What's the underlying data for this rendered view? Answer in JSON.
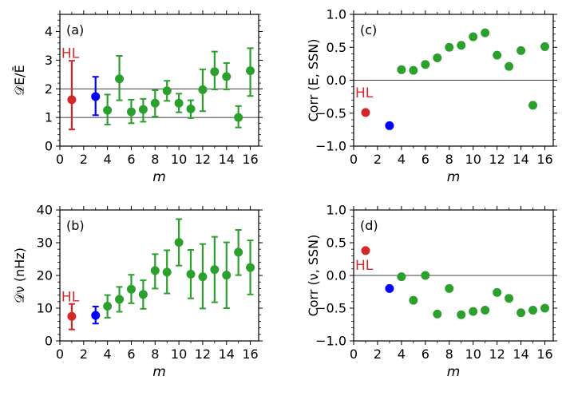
{
  "colors": {
    "green": "#2ca02c",
    "red": "#d62728",
    "blue": "#0000ff",
    "axis": "#000000"
  },
  "chart_data": [
    {
      "type": "scatter",
      "panel_label": "(a)",
      "annotation": "HL",
      "ylabel": "𝒟E/Ē",
      "xlabel": "m",
      "xlim": [
        0,
        16.7
      ],
      "ylim": [
        0,
        4.6
      ],
      "xticks": [
        "0",
        "2",
        "4",
        "6",
        "8",
        "10",
        "12",
        "14",
        "16"
      ],
      "yticks": [
        "0",
        "1",
        "2",
        "3",
        "4"
      ],
      "hlines": [
        1,
        2
      ],
      "errorbars": true,
      "series": [
        {
          "name": "HL",
          "color": "red",
          "points": [
            {
              "x": 1,
              "y": 1.62,
              "lo": 0.58,
              "hi": 2.98
            }
          ]
        },
        {
          "color": "blue",
          "points": [
            {
              "x": 3,
              "y": 1.73,
              "lo": 1.08,
              "hi": 2.42
            }
          ]
        },
        {
          "color": "green",
          "points": [
            {
              "x": 4,
              "y": 1.25,
              "lo": 0.75,
              "hi": 1.8
            },
            {
              "x": 5,
              "y": 2.35,
              "lo": 1.6,
              "hi": 3.15
            },
            {
              "x": 6,
              "y": 1.2,
              "lo": 0.8,
              "hi": 1.62
            },
            {
              "x": 7,
              "y": 1.28,
              "lo": 0.85,
              "hi": 1.65
            },
            {
              "x": 8,
              "y": 1.5,
              "lo": 1.03,
              "hi": 1.95
            },
            {
              "x": 9,
              "y": 1.93,
              "lo": 1.58,
              "hi": 2.28
            },
            {
              "x": 10,
              "y": 1.5,
              "lo": 1.18,
              "hi": 1.83
            },
            {
              "x": 11,
              "y": 1.3,
              "lo": 0.98,
              "hi": 1.6
            },
            {
              "x": 12,
              "y": 1.97,
              "lo": 1.22,
              "hi": 2.68
            },
            {
              "x": 13,
              "y": 2.6,
              "lo": 1.98,
              "hi": 3.3
            },
            {
              "x": 14,
              "y": 2.43,
              "lo": 1.98,
              "hi": 2.9
            },
            {
              "x": 15,
              "y": 1.0,
              "lo": 0.65,
              "hi": 1.4
            },
            {
              "x": 16,
              "y": 2.63,
              "lo": 1.75,
              "hi": 3.42
            }
          ]
        }
      ]
    },
    {
      "type": "scatter",
      "panel_label": "(b)",
      "annotation": "HL",
      "ylabel": "𝒟ν (nHz)",
      "xlabel": "m",
      "xlim": [
        0,
        16.7
      ],
      "ylim": [
        0,
        40
      ],
      "xticks": [
        "0",
        "2",
        "4",
        "6",
        "8",
        "10",
        "12",
        "14",
        "16"
      ],
      "yticks": [
        "0",
        "10",
        "20",
        "30",
        "40"
      ],
      "hlines": [],
      "errorbars": true,
      "series": [
        {
          "name": "HL",
          "color": "red",
          "points": [
            {
              "x": 1,
              "y": 7.5,
              "lo": 3.5,
              "hi": 11.3
            }
          ]
        },
        {
          "color": "blue",
          "points": [
            {
              "x": 3,
              "y": 7.8,
              "lo": 5.3,
              "hi": 10.5
            }
          ]
        },
        {
          "color": "green",
          "points": [
            {
              "x": 4,
              "y": 10.6,
              "lo": 7.1,
              "hi": 14.0
            },
            {
              "x": 5,
              "y": 12.7,
              "lo": 8.9,
              "hi": 16.5
            },
            {
              "x": 6,
              "y": 15.8,
              "lo": 11.5,
              "hi": 20.2
            },
            {
              "x": 7,
              "y": 14.2,
              "lo": 9.8,
              "hi": 18.5
            },
            {
              "x": 8,
              "y": 21.5,
              "lo": 16.0,
              "hi": 26.5
            },
            {
              "x": 9,
              "y": 21.0,
              "lo": 14.5,
              "hi": 27.7
            },
            {
              "x": 10,
              "y": 30.1,
              "lo": 23.0,
              "hi": 37.2
            },
            {
              "x": 11,
              "y": 20.4,
              "lo": 13.0,
              "hi": 27.8
            },
            {
              "x": 12,
              "y": 19.6,
              "lo": 9.9,
              "hi": 29.6
            },
            {
              "x": 13,
              "y": 21.8,
              "lo": 11.8,
              "hi": 31.8
            },
            {
              "x": 14,
              "y": 20.1,
              "lo": 10.0,
              "hi": 30.1
            },
            {
              "x": 15,
              "y": 27.1,
              "lo": 20.1,
              "hi": 33.9
            },
            {
              "x": 16,
              "y": 22.4,
              "lo": 14.2,
              "hi": 30.7
            }
          ]
        }
      ]
    },
    {
      "type": "scatter",
      "panel_label": "(c)",
      "annotation": "HL",
      "ylabel": "Corr (E, SSN)",
      "xlabel": "m",
      "xlim": [
        0,
        16.7
      ],
      "ylim": [
        -1.0,
        1.0
      ],
      "xticks": [
        "0",
        "2",
        "4",
        "6",
        "8",
        "10",
        "12",
        "14",
        "16"
      ],
      "yticks": [
        "−1.0",
        "−0.5",
        "0.0",
        "0.5",
        "1.0"
      ],
      "hlines": [
        0
      ],
      "errorbars": false,
      "series": [
        {
          "name": "HL",
          "color": "red",
          "points": [
            {
              "x": 1,
              "y": -0.49
            }
          ]
        },
        {
          "color": "blue",
          "points": [
            {
              "x": 3,
              "y": -0.69
            }
          ]
        },
        {
          "color": "green",
          "points": [
            {
              "x": 4,
              "y": 0.16
            },
            {
              "x": 5,
              "y": 0.15
            },
            {
              "x": 6,
              "y": 0.24
            },
            {
              "x": 7,
              "y": 0.34
            },
            {
              "x": 8,
              "y": 0.5
            },
            {
              "x": 9,
              "y": 0.53
            },
            {
              "x": 10,
              "y": 0.66
            },
            {
              "x": 11,
              "y": 0.72
            },
            {
              "x": 12,
              "y": 0.38
            },
            {
              "x": 13,
              "y": 0.21
            },
            {
              "x": 14,
              "y": 0.45
            },
            {
              "x": 15,
              "y": -0.38
            },
            {
              "x": 16,
              "y": 0.51
            }
          ]
        }
      ]
    },
    {
      "type": "scatter",
      "panel_label": "(d)",
      "annotation": "HL",
      "ylabel": "Corr (ν, SSN)",
      "xlabel": "m",
      "xlim": [
        0,
        16.7
      ],
      "ylim": [
        -1.0,
        1.0
      ],
      "xticks": [
        "0",
        "2",
        "4",
        "6",
        "8",
        "10",
        "12",
        "14",
        "16"
      ],
      "yticks": [
        "−1.0",
        "−0.5",
        "0.0",
        "0.5",
        "1.0"
      ],
      "hlines": [
        0
      ],
      "errorbars": false,
      "series": [
        {
          "name": "HL",
          "color": "red",
          "points": [
            {
              "x": 1,
              "y": 0.38
            }
          ]
        },
        {
          "color": "blue",
          "points": [
            {
              "x": 3,
              "y": -0.2
            }
          ]
        },
        {
          "color": "green",
          "points": [
            {
              "x": 4,
              "y": -0.02
            },
            {
              "x": 5,
              "y": -0.38
            },
            {
              "x": 6,
              "y": 0.0
            },
            {
              "x": 7,
              "y": -0.59
            },
            {
              "x": 8,
              "y": -0.2
            },
            {
              "x": 9,
              "y": -0.6
            },
            {
              "x": 10,
              "y": -0.55
            },
            {
              "x": 11,
              "y": -0.53
            },
            {
              "x": 12,
              "y": -0.26
            },
            {
              "x": 13,
              "y": -0.35
            },
            {
              "x": 14,
              "y": -0.57
            },
            {
              "x": 15,
              "y": -0.53
            },
            {
              "x": 16,
              "y": -0.5
            }
          ]
        }
      ]
    }
  ]
}
